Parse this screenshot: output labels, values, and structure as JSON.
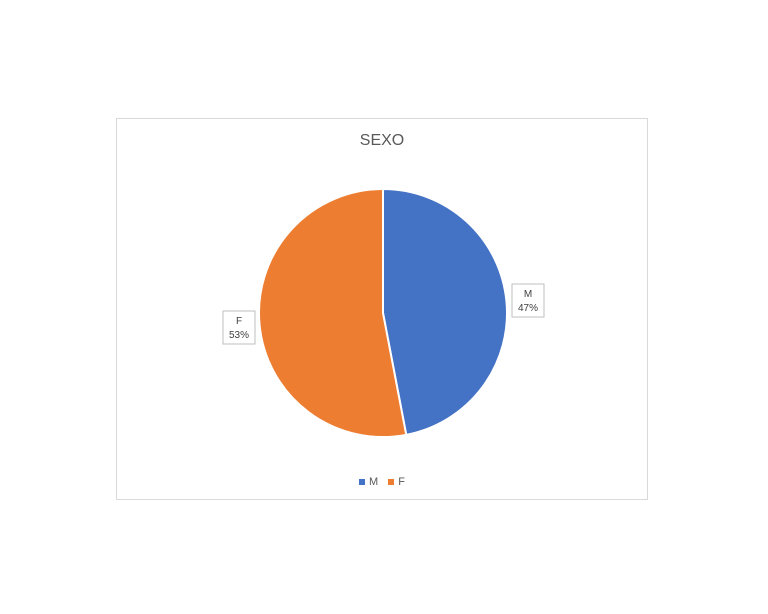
{
  "chart_data": {
    "type": "pie",
    "title": "SEXO",
    "categories": [
      "M",
      "F"
    ],
    "values": [
      47,
      53
    ],
    "data_labels": [
      {
        "category": "M",
        "percent": "47%"
      },
      {
        "category": "F",
        "percent": "53%"
      }
    ],
    "colors": [
      "#4472C4",
      "#ED7D31"
    ],
    "legend": "bottom"
  }
}
